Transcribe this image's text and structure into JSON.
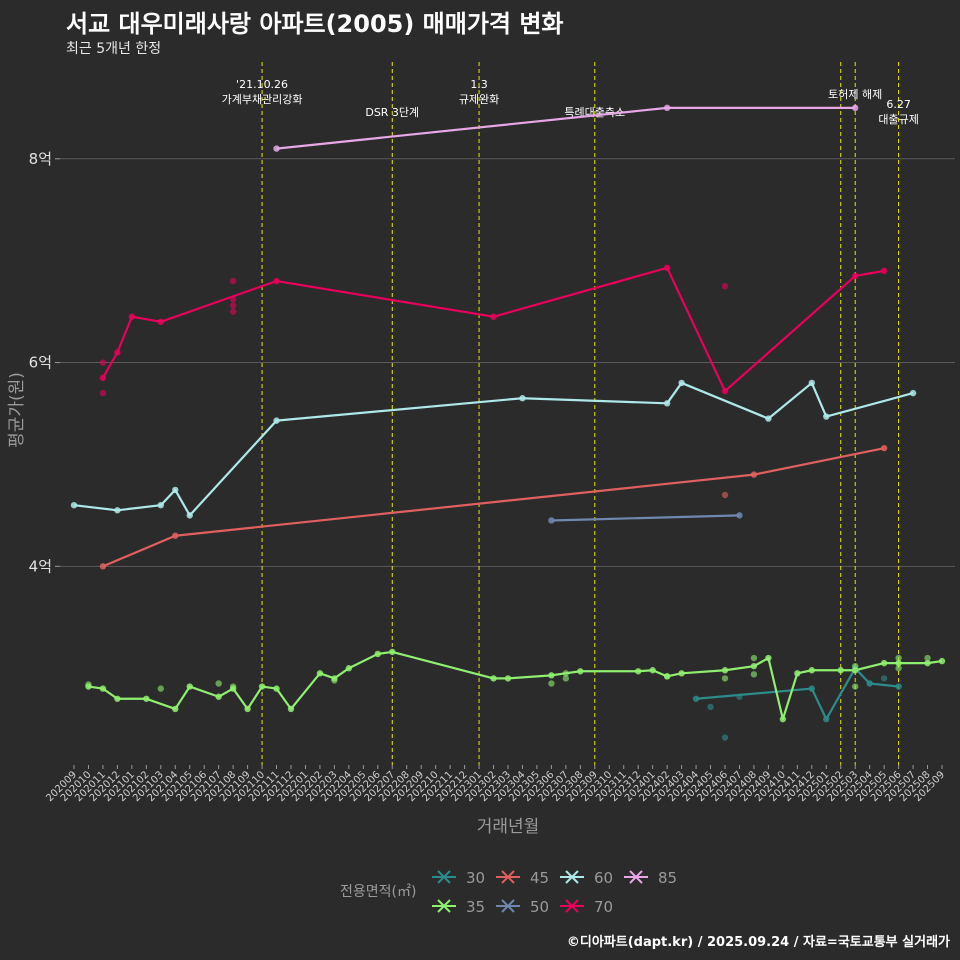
{
  "title": "서교 대우미래사랑 아파트(2005) 매매가격 변화",
  "subtitle": "최근 5개년 한정",
  "caption": "©디아파트(dapt.kr) / 2025.09.24 / 자료=국토교통부 실거래가",
  "colors": {
    "background": "#2b2b2b",
    "grid": "#5a5a5a",
    "event_line": "#e8e800",
    "s30": "#2e8b8b",
    "s35": "#90ee70",
    "s45": "#e06060",
    "s50": "#7088b0",
    "s60": "#aee8e8",
    "s70": "#e8005a",
    "s85": "#e8a8e8"
  },
  "chart_data": {
    "type": "line",
    "title": "서교 대우미래사랑 아파트(2005) 매매가격 변화",
    "xlabel": "거래년월",
    "ylabel": "평균가(원)",
    "ylim": [
      2.05,
      8.95
    ],
    "y_ticks": [
      4,
      6,
      8
    ],
    "y_tick_labels": [
      "4억",
      "6억",
      "8억"
    ],
    "x_categories": [
      "202009",
      "202010",
      "202011",
      "202012",
      "202101",
      "202102",
      "202103",
      "202104",
      "202105",
      "202106",
      "202107",
      "202108",
      "202109",
      "202110",
      "202111",
      "202112",
      "202201",
      "202202",
      "202203",
      "202204",
      "202205",
      "202206",
      "202207",
      "202208",
      "202209",
      "202210",
      "202211",
      "202212",
      "202301",
      "202302",
      "202303",
      "202304",
      "202305",
      "202306",
      "202307",
      "202308",
      "202309",
      "202310",
      "202311",
      "202312",
      "202401",
      "202402",
      "202403",
      "202404",
      "202405",
      "202406",
      "202407",
      "202408",
      "202409",
      "202410",
      "202411",
      "202412",
      "202501",
      "202502",
      "202503",
      "202504",
      "202505",
      "202506",
      "202507",
      "202508",
      "202509"
    ],
    "legend_title": "전용면적(㎡)",
    "legend": [
      "30",
      "45",
      "60",
      "85",
      "35",
      "50",
      "70"
    ],
    "events": [
      {
        "x": "202110",
        "label": "'21.10.26\n가계부채관리강화"
      },
      {
        "x": "202207",
        "label": "DSR 3단계"
      },
      {
        "x": "202301",
        "label": "1.3\n규제완화"
      },
      {
        "x": "202309",
        "label": "특례대출축소"
      },
      {
        "x": "202502",
        "label": ""
      },
      {
        "x": "202503",
        "label": "토허제 해제"
      },
      {
        "x": "202506",
        "label": "6.27\n대출규제"
      }
    ],
    "series": [
      {
        "name": "30",
        "color": "#2e8b8b",
        "line": [
          [
            "202404",
            2.7
          ],
          [
            "202412",
            2.8
          ],
          [
            "202501",
            2.5
          ],
          [
            "202503",
            3.0
          ],
          [
            "202504",
            2.85
          ],
          [
            "202506",
            2.82
          ]
        ],
        "points": [
          [
            "202405",
            2.62
          ],
          [
            "202406",
            2.32
          ],
          [
            "202407",
            2.72
          ],
          [
            "202505",
            2.9
          ]
        ]
      },
      {
        "name": "35",
        "color": "#90ee70",
        "line": [
          [
            "202010",
            2.82
          ],
          [
            "202011",
            2.8
          ],
          [
            "202012",
            2.7
          ],
          [
            "202102",
            2.7
          ],
          [
            "202104",
            2.6
          ],
          [
            "202105",
            2.82
          ],
          [
            "202107",
            2.72
          ],
          [
            "202108",
            2.8
          ],
          [
            "202109",
            2.6
          ],
          [
            "202110",
            2.82
          ],
          [
            "202111",
            2.8
          ],
          [
            "202112",
            2.6
          ],
          [
            "202202",
            2.95
          ],
          [
            "202203",
            2.9
          ],
          [
            "202204",
            3.0
          ],
          [
            "202206",
            3.14
          ],
          [
            "202207",
            3.16
          ],
          [
            "202302",
            2.9
          ],
          [
            "202303",
            2.9
          ],
          [
            "202306",
            2.93
          ],
          [
            "202308",
            2.97
          ],
          [
            "202312",
            2.97
          ],
          [
            "202401",
            2.98
          ],
          [
            "202402",
            2.92
          ],
          [
            "202403",
            2.95
          ],
          [
            "202406",
            2.98
          ],
          [
            "202408",
            3.02
          ],
          [
            "202409",
            3.1
          ],
          [
            "202410",
            2.5
          ],
          [
            "202411",
            2.95
          ],
          [
            "202412",
            2.98
          ],
          [
            "202502",
            2.98
          ],
          [
            "202503",
            2.98
          ],
          [
            "202505",
            3.05
          ],
          [
            "202506",
            3.05
          ],
          [
            "202508",
            3.05
          ],
          [
            "202509",
            3.07
          ]
        ],
        "points": [
          [
            "202010",
            2.84
          ],
          [
            "202103",
            2.8
          ],
          [
            "202107",
            2.85
          ],
          [
            "202108",
            2.82
          ],
          [
            "202203",
            2.88
          ],
          [
            "202306",
            2.85
          ],
          [
            "202307",
            2.9
          ],
          [
            "202307",
            2.95
          ],
          [
            "202402",
            2.92
          ],
          [
            "202406",
            2.9
          ],
          [
            "202408",
            2.94
          ],
          [
            "202408",
            3.1
          ],
          [
            "202503",
            2.82
          ],
          [
            "202503",
            3.02
          ],
          [
            "202506",
            3.1
          ],
          [
            "202506",
            3.0
          ],
          [
            "202508",
            3.1
          ]
        ]
      },
      {
        "name": "45",
        "color": "#e06060",
        "line": [
          [
            "202011",
            4.0
          ],
          [
            "202104",
            4.3
          ],
          [
            "202408",
            4.9
          ],
          [
            "202505",
            5.16
          ]
        ],
        "points": [
          [
            "202406",
            4.7
          ]
        ]
      },
      {
        "name": "50",
        "color": "#7088b0",
        "line": [
          [
            "202306",
            4.45
          ],
          [
            "202407",
            4.5
          ]
        ],
        "points": []
      },
      {
        "name": "60",
        "color": "#aee8e8",
        "line": [
          [
            "202009",
            4.6
          ],
          [
            "202012",
            4.55
          ],
          [
            "202103",
            4.6
          ],
          [
            "202104",
            4.75
          ],
          [
            "202105",
            4.5
          ],
          [
            "202111",
            5.43
          ],
          [
            "202304",
            5.65
          ],
          [
            "202402",
            5.6
          ],
          [
            "202403",
            5.8
          ],
          [
            "202409",
            5.45
          ],
          [
            "202412",
            5.8
          ],
          [
            "202501",
            5.47
          ],
          [
            "202507",
            5.7
          ]
        ],
        "points": []
      },
      {
        "name": "70",
        "color": "#e8005a",
        "line": [
          [
            "202011",
            5.85
          ],
          [
            "202012",
            6.1
          ],
          [
            "202101",
            6.45
          ],
          [
            "202103",
            6.4
          ],
          [
            "202111",
            6.8
          ],
          [
            "202302",
            6.45
          ],
          [
            "202402",
            6.93
          ],
          [
            "202406",
            5.72
          ],
          [
            "202503",
            6.85
          ],
          [
            "202505",
            6.9
          ]
        ],
        "points": [
          [
            "202011",
            6.0
          ],
          [
            "202011",
            5.7
          ],
          [
            "202108",
            6.8
          ],
          [
            "202108",
            6.62
          ],
          [
            "202108",
            6.56
          ],
          [
            "202108",
            6.5
          ],
          [
            "202406",
            6.75
          ]
        ]
      },
      {
        "name": "85",
        "color": "#e8a8e8",
        "line": [
          [
            "202111",
            8.1
          ],
          [
            "202402",
            8.5
          ],
          [
            "202503",
            8.5
          ]
        ],
        "points": []
      }
    ]
  }
}
